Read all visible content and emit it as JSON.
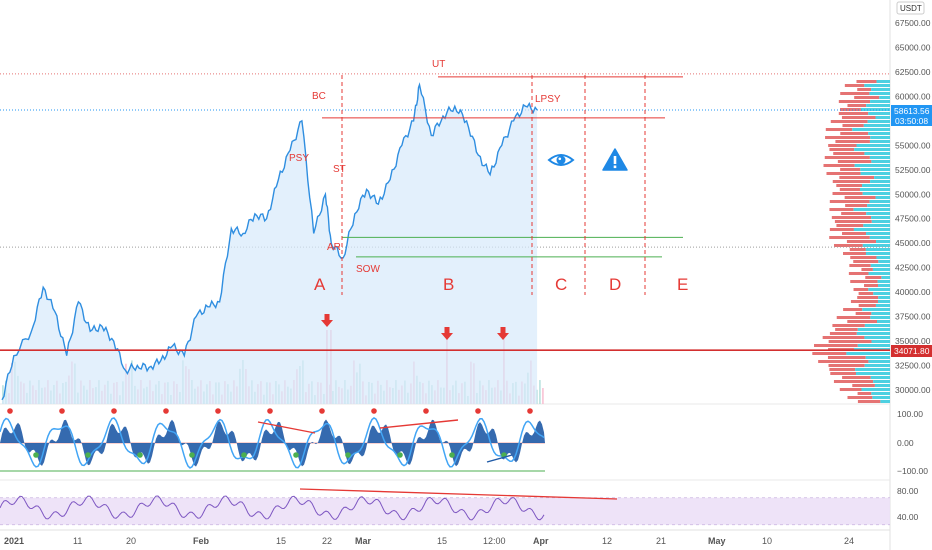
{
  "header": {
    "currency": "USDT"
  },
  "colors": {
    "price_line": "#2f8ee0",
    "price_fill": "#d7e9fb",
    "annotation": "#e53935",
    "support": "#4caf50",
    "hline": "#d32f2f",
    "profile_buy": "#4dd0e1",
    "profile_sell": "#e57373",
    "rsi_band": "#ece0f7",
    "axis_text": "#555555",
    "price_tag": "#2196f3",
    "level_tag": "#d32f2f"
  },
  "price_axis": {
    "ticks": [
      "67500.00",
      "65000.00",
      "62500.00",
      "60000.00",
      "57500.00",
      "55000.00",
      "52500.00",
      "50000.00",
      "47500.00",
      "45000.00",
      "42500.00",
      "40000.00",
      "37500.00",
      "35000.00",
      "32500.00",
      "30000.00"
    ],
    "current_price": "58613.56",
    "countdown": "03:50:08",
    "level_price": "34071.80"
  },
  "oscillator_axis": {
    "ticks": [
      "100.00",
      "0.00",
      "−100.00"
    ]
  },
  "rsi_axis": {
    "ticks": [
      "80.00",
      "40.00"
    ]
  },
  "time_axis": {
    "ticks": [
      "2021",
      "11",
      "20",
      "Feb",
      "15",
      "22",
      "Mar",
      "15",
      "12:00",
      "Apr",
      "12",
      "21",
      "May",
      "10",
      "24"
    ]
  },
  "annotations": {
    "points": [
      "BC",
      "PSY",
      "ST",
      "AR",
      "SOW",
      "UT",
      "LPSY"
    ],
    "phases": [
      "A",
      "B",
      "C",
      "D",
      "E"
    ]
  },
  "icons": [
    "eye-icon",
    "warning-icon",
    "down-arrow-icon"
  ],
  "chart_data": {
    "type": "line",
    "title": "",
    "currency": "USDT",
    "x_range": [
      "2021-01-01",
      "2021-05-31"
    ],
    "series": [
      {
        "values": [
          [
            "2021-01-01",
            29000
          ],
          [
            "2021-01-03",
            33500
          ],
          [
            "2021-01-06",
            36000
          ],
          [
            "2021-01-08",
            40500
          ],
          [
            "2021-01-10",
            38000
          ],
          [
            "2021-01-12",
            33500
          ],
          [
            "2021-01-14",
            39000
          ],
          [
            "2021-01-16",
            36000
          ],
          [
            "2021-01-18",
            36500
          ],
          [
            "2021-01-20",
            35000
          ],
          [
            "2021-01-22",
            32000
          ],
          [
            "2021-01-24",
            32500
          ],
          [
            "2021-01-26",
            32300
          ],
          [
            "2021-01-28",
            33000
          ],
          [
            "2021-01-30",
            34500
          ],
          [
            "2021-02-01",
            33500
          ],
          [
            "2021-02-03",
            37500
          ],
          [
            "2021-02-05",
            38500
          ],
          [
            "2021-02-07",
            39000
          ],
          [
            "2021-02-09",
            46500
          ],
          [
            "2021-02-11",
            46000
          ],
          [
            "2021-02-13",
            48000
          ],
          [
            "2021-02-15",
            47500
          ],
          [
            "2021-02-17",
            51500
          ],
          [
            "2021-02-19",
            54500
          ],
          [
            "2021-02-21",
            57500
          ],
          [
            "2021-02-23",
            46000
          ],
          [
            "2021-02-25",
            50000
          ],
          [
            "2021-02-26",
            45000
          ],
          [
            "2021-02-28",
            43500
          ],
          [
            "2021-03-02",
            48000
          ],
          [
            "2021-03-04",
            50500
          ],
          [
            "2021-03-06",
            49000
          ],
          [
            "2021-03-08",
            51500
          ],
          [
            "2021-03-10",
            55000
          ],
          [
            "2021-03-12",
            57500
          ],
          [
            "2021-03-13",
            61200
          ],
          [
            "2021-03-15",
            56000
          ],
          [
            "2021-03-17",
            58000
          ],
          [
            "2021-03-19",
            59000
          ],
          [
            "2021-03-21",
            57500
          ],
          [
            "2021-03-23",
            54000
          ],
          [
            "2021-03-25",
            52000
          ],
          [
            "2021-03-27",
            55000
          ],
          [
            "2021-03-29",
            57500
          ],
          [
            "2021-03-31",
            59000
          ],
          [
            "2021-04-02",
            58613.56
          ]
        ]
      }
    ],
    "ylim": [
      28000,
      69000
    ],
    "horizontal_levels": [
      34071.8,
      62000,
      57800,
      45600,
      43600
    ],
    "current_price": 58613.56,
    "annotations": [
      {
        "label": "BC",
        "x": "2021-02-21",
        "y": 57800
      },
      {
        "label": "PSY",
        "x": "2021-02-18",
        "y": 52500
      },
      {
        "label": "ST",
        "x": "2021-02-25",
        "y": 50000
      },
      {
        "label": "AR",
        "x": "2021-02-23",
        "y": 45000
      },
      {
        "label": "SOW",
        "x": "2021-02-28",
        "y": 43500
      },
      {
        "label": "UT",
        "x": "2021-03-13",
        "y": 61200
      },
      {
        "label": "LPSY",
        "x": "2021-03-31",
        "y": 59000
      }
    ],
    "phases": [
      "A",
      "B",
      "C",
      "D",
      "E"
    ],
    "oscillator_range": [
      -100,
      100
    ],
    "rsi_range": [
      40,
      80
    ],
    "grid": false,
    "legend": "none"
  }
}
